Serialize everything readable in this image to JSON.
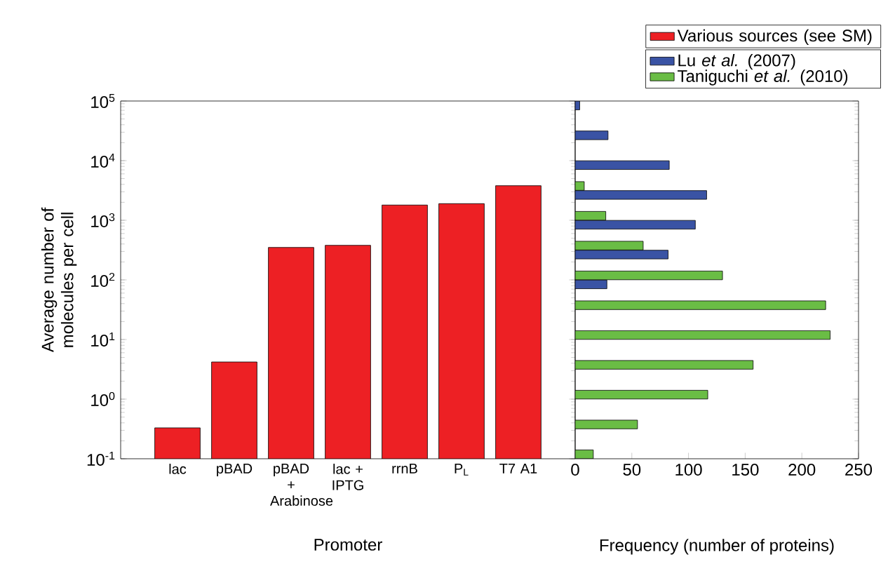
{
  "chart_data": [
    {
      "type": "bar",
      "categories": [
        "lac",
        "pBAD",
        "pBAD + Arabinose",
        "lac + IPTG",
        "rrnB",
        "P$_{L}$",
        "T7 A1"
      ],
      "series": [
        {
          "name": "Various sources (see SM)",
          "color": "#ed2024",
          "values": [
            0.33,
            4.2,
            350,
            380,
            1800,
            1900,
            3800
          ]
        }
      ],
      "xlabel": "Promoter",
      "ylabel": "Average number of molecules per cell",
      "log": "y",
      "ylim": [
        0.1,
        100000
      ],
      "yticks": [
        {
          "value": 0.1,
          "label": "10$^{-1}$"
        },
        {
          "value": 1,
          "label": "10$^{0}$"
        },
        {
          "value": 10,
          "label": "10$^{1}$"
        },
        {
          "value": 100,
          "label": "10$^{2}$"
        },
        {
          "value": 1000,
          "label": "10$^{3}$"
        },
        {
          "value": 10000,
          "label": "10$^{4}$"
        },
        {
          "value": 100000,
          "label": "10$^{5}$"
        }
      ],
      "legend": "top right"
    },
    {
      "type": "bar",
      "orientation": "horizontal",
      "x": [
        0.1,
        0.316,
        1,
        3.16,
        10,
        31.6,
        100,
        316,
        1000,
        3160,
        10000,
        31600,
        100000
      ],
      "series": [
        {
          "name": "Lu *et al.* (2007)",
          "color": "#3a53a4",
          "values": [
            null,
            null,
            null,
            null,
            null,
            null,
            28,
            82,
            106,
            116,
            83,
            29,
            4
          ]
        },
        {
          "name": "Taniguchi *et al.* (2010)",
          "color": "#6abd45",
          "values": [
            16,
            55,
            117,
            157,
            225,
            221,
            130,
            60,
            27,
            8,
            null,
            null,
            null
          ]
        }
      ],
      "xlabel": "Frequency (number of proteins)",
      "log": "y",
      "ylim": [
        0.1,
        100000
      ],
      "xlim": [
        0,
        250
      ],
      "xticks": [
        0,
        50,
        100,
        150,
        200,
        250
      ],
      "tick_labels": "x",
      "legend": "top"
    }
  ]
}
